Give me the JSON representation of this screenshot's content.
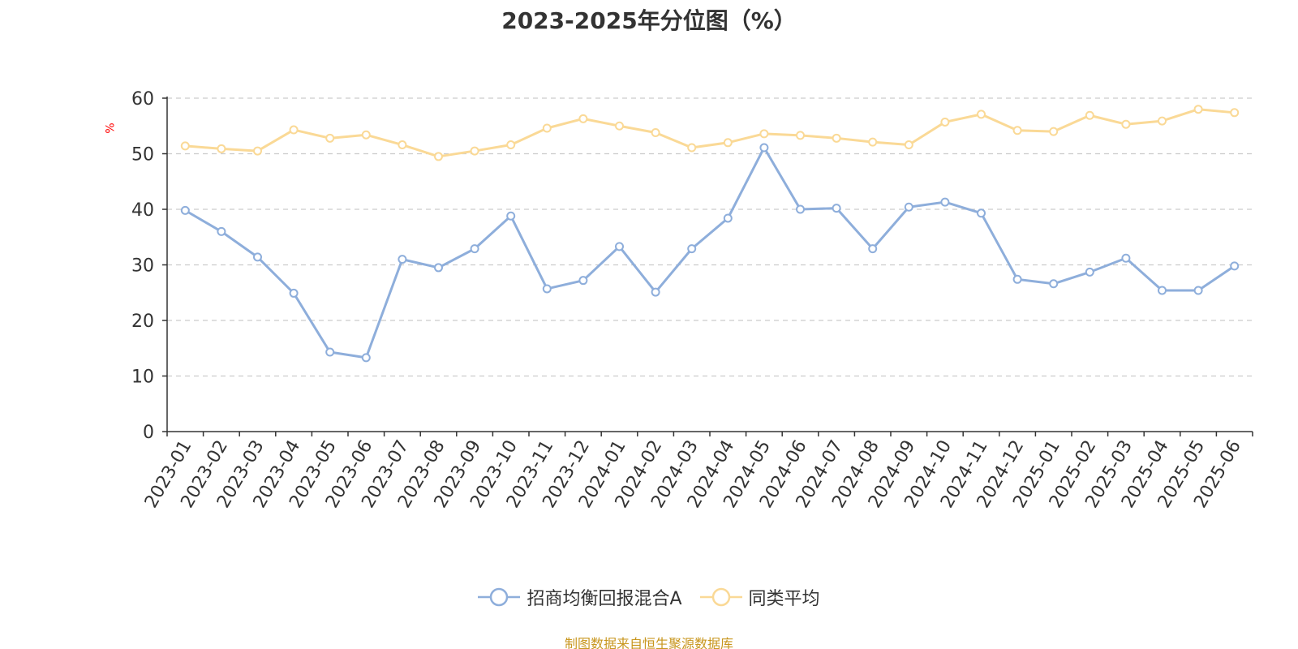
{
  "chart_data": {
    "type": "line",
    "title": "2023-2025年分位图（%）",
    "ylabel": "%",
    "xlabel": "",
    "ylim": [
      0,
      60
    ],
    "yticks": [
      0,
      10,
      20,
      30,
      40,
      50,
      60
    ],
    "grid": true,
    "legend_position": "bottom",
    "categories": [
      "2023-01",
      "2023-02",
      "2023-03",
      "2023-04",
      "2023-05",
      "2023-06",
      "2023-07",
      "2023-08",
      "2023-09",
      "2023-10",
      "2023-11",
      "2023-12",
      "2024-01",
      "2024-02",
      "2024-03",
      "2024-04",
      "2024-05",
      "2024-06",
      "2024-07",
      "2024-08",
      "2024-09",
      "2024-10",
      "2024-11",
      "2024-12",
      "2025-01",
      "2025-02",
      "2025-03",
      "2025-04",
      "2025-05",
      "2025-06"
    ],
    "series": [
      {
        "name": "招商均衡回报混合A",
        "color": "#8eaedb",
        "values": [
          39.8,
          36.0,
          31.4,
          24.9,
          14.3,
          13.3,
          31.0,
          29.5,
          32.9,
          38.8,
          25.7,
          27.2,
          33.3,
          25.1,
          32.9,
          38.4,
          51.1,
          40.0,
          40.2,
          32.9,
          40.4,
          41.3,
          39.3,
          27.4,
          26.6,
          28.7,
          31.2,
          25.4,
          25.4,
          29.8
        ]
      },
      {
        "name": "同类平均",
        "color": "#fad996",
        "values": [
          51.4,
          50.9,
          50.5,
          54.3,
          52.8,
          53.4,
          51.6,
          49.5,
          50.5,
          51.6,
          54.6,
          56.3,
          55.0,
          53.8,
          51.1,
          52.0,
          53.6,
          53.3,
          52.8,
          52.1,
          51.6,
          55.7,
          57.1,
          54.2,
          54.0,
          56.9,
          55.3,
          55.9,
          58.0,
          57.4
        ]
      }
    ]
  },
  "source_note": "制图数据来自恒生聚源数据库"
}
